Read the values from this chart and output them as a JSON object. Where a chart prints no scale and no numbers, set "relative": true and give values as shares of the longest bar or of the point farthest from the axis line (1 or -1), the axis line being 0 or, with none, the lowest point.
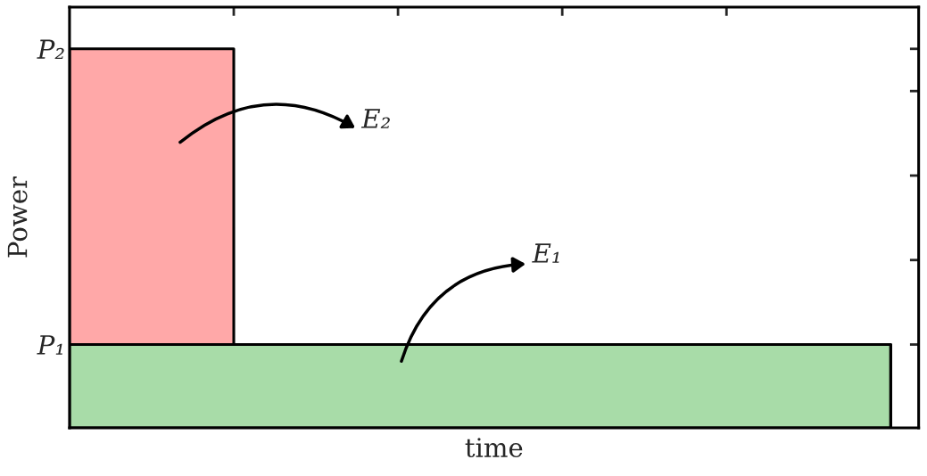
{
  "chart_data": {
    "type": "area",
    "stacked": true,
    "relative": true,
    "xlabel": "time",
    "ylabel": "Power",
    "categories": [
      null,
      null,
      null,
      null,
      null,
      null
    ],
    "series": [
      {
        "color": "#a8dca8",
        "values": [
          0.22,
          0.22,
          0.22,
          0.22,
          0.22,
          0
        ]
      },
      {
        "color": "#ffa8a8",
        "values": [
          0.78,
          0,
          0,
          0,
          0,
          0
        ]
      }
    ],
    "annotations": [
      "P₁",
      "P₂",
      "E₂",
      "E₁"
    ]
  }
}
